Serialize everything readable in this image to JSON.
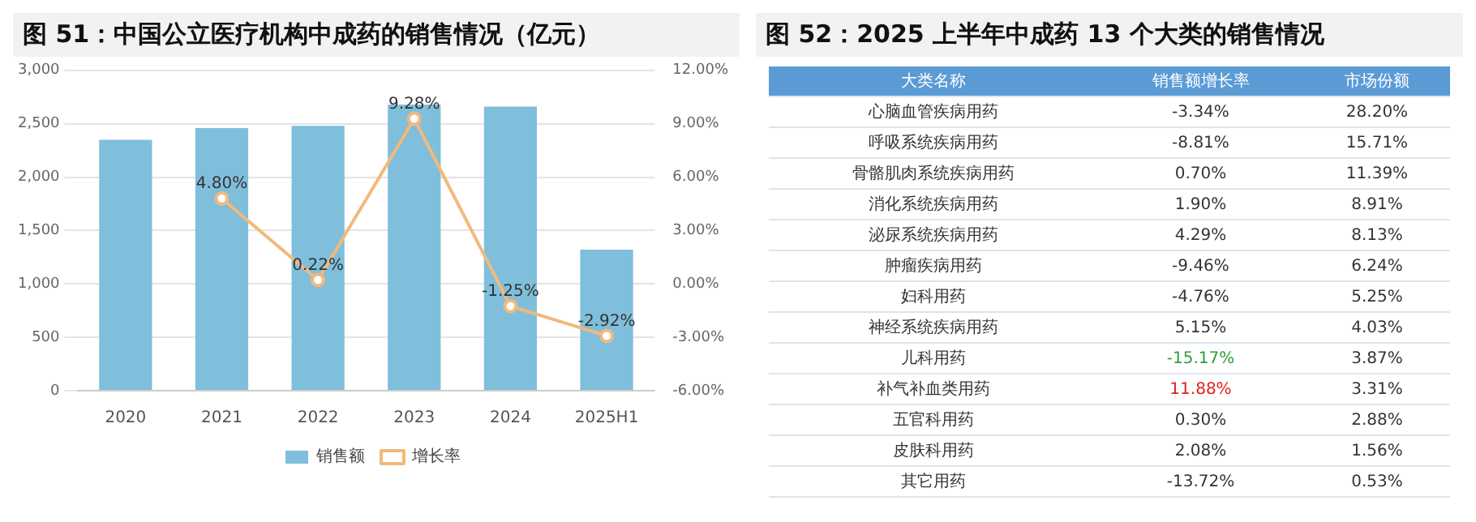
{
  "chart_data": [
    {
      "type": "bar",
      "title": "图 51：中国公立医疗机构中成药的销售情况（亿元）",
      "categories": [
        "2020",
        "2021",
        "2022",
        "2023",
        "2024",
        "2025H1"
      ],
      "series": [
        {
          "name": "销售额",
          "type": "bar",
          "color": "#7fbfdc",
          "values": [
            2350,
            2460,
            2480,
            2680,
            2660,
            1320
          ]
        },
        {
          "name": "增长率",
          "type": "line",
          "axis": "y2",
          "color": "#f2b97c",
          "marker": "circle",
          "values": [
            null,
            4.8,
            0.22,
            9.28,
            -1.25,
            -2.92
          ],
          "value_labels": [
            null,
            "4.80%",
            "0.22%",
            "9.28%",
            "-1.25%",
            "-2.92%"
          ]
        }
      ],
      "ylim": [
        0,
        3000
      ],
      "yticks": [
        0,
        {
          "value": 500,
          "label": "500"
        },
        {
          "value": 1000,
          "label": "1,000"
        },
        {
          "value": 1500,
          "label": "1,500"
        },
        {
          "value": 2000,
          "label": "2,000"
        },
        {
          "value": 2500,
          "label": "2,500"
        },
        {
          "value": 3000,
          "label": "3,000"
        }
      ],
      "y2lim": [
        -6,
        12
      ],
      "y2ticks": [
        {
          "value": -6,
          "label": "-6.00%"
        },
        {
          "value": -3,
          "label": "-3.00%"
        },
        {
          "value": 0,
          "label": "0.00%"
        },
        {
          "value": 3,
          "label": "3.00%"
        },
        {
          "value": 6,
          "label": "6.00%"
        },
        {
          "value": 9,
          "label": "9.00%"
        },
        {
          "value": 12,
          "label": "12.00%"
        }
      ],
      "grid": "y",
      "legend": "bottom"
    },
    {
      "type": "other",
      "title": "图 52：2025 上半年中成药 13 个大类的销售情况",
      "xlabel": "大类名称",
      "categories": [
        "心脑血管疾病用药",
        "呼吸系统疾病用药",
        "骨骼肌肉系统疾病用药",
        "消化系统疾病用药",
        "泌尿系统疾病用药",
        "肿瘤疾病用药",
        "妇科用药",
        "神经系统疾病用药",
        "儿科用药",
        "补气补血类用药",
        "五官科用药",
        "皮肤科用药",
        "其它用药"
      ],
      "series": [
        {
          "name": "销售额增长率",
          "values": [
            -3.34,
            -8.81,
            0.7,
            1.9,
            4.29,
            -9.46,
            -4.76,
            5.15,
            -15.17,
            11.88,
            0.3,
            2.08,
            -13.72
          ],
          "value_labels": [
            "-3.34%",
            "-8.81%",
            "0.70%",
            "1.90%",
            "4.29%",
            "-9.46%",
            "-4.76%",
            "5.15%",
            "-15.17%",
            "11.88%",
            "0.30%",
            "2.08%",
            "-13.72%"
          ],
          "colors": [
            "#333333",
            "#333333",
            "#333333",
            "#333333",
            "#333333",
            "#333333",
            "#333333",
            "#333333",
            "#2e9e3e",
            "#e02020",
            "#333333",
            "#333333",
            "#333333"
          ]
        },
        {
          "name": "市场份额",
          "values": [
            28.2,
            15.71,
            11.39,
            8.91,
            8.13,
            6.24,
            5.25,
            4.03,
            3.87,
            3.31,
            2.88,
            1.56,
            0.53
          ],
          "value_labels": [
            "28.20%",
            "15.71%",
            "11.39%",
            "8.91%",
            "8.13%",
            "6.24%",
            "5.25%",
            "4.03%",
            "3.87%",
            "3.31%",
            "2.88%",
            "1.56%",
            "0.53%"
          ]
        }
      ]
    }
  ]
}
